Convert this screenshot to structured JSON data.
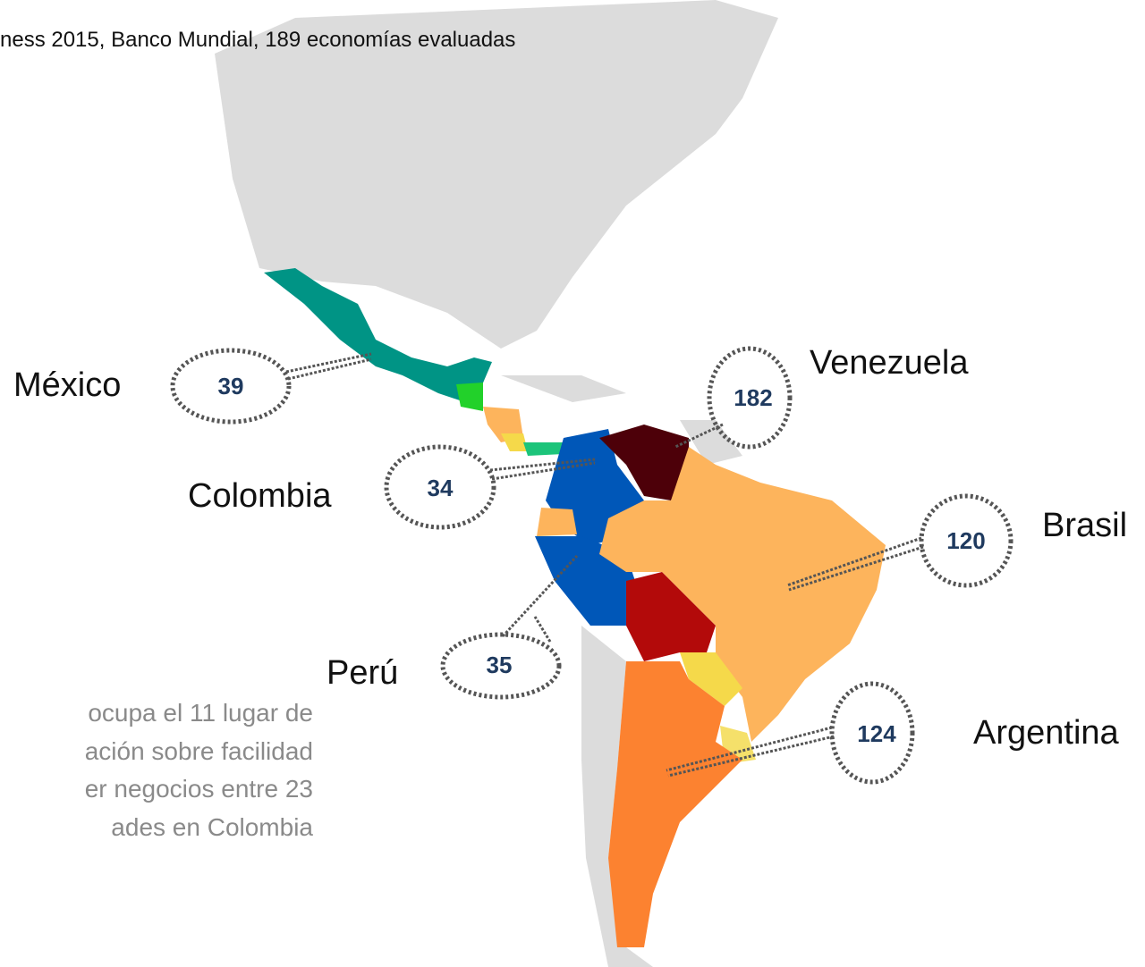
{
  "source": "ness 2015, Banco Mundial, 189 economías evaluadas",
  "countries": [
    {
      "name": "México",
      "rank": 39
    },
    {
      "name": "Venezuela",
      "rank": 182
    },
    {
      "name": "Colombia",
      "rank": 34
    },
    {
      "name": "Brasil",
      "rank": 120
    },
    {
      "name": "Perú",
      "rank": 35
    },
    {
      "name": "Argentina",
      "rank": 124
    }
  ],
  "note": {
    "lines": [
      "ocupa el 11 lugar de",
      "ación sobre facilidad",
      "er negocios entre 23",
      "ades en Colombia"
    ]
  }
}
